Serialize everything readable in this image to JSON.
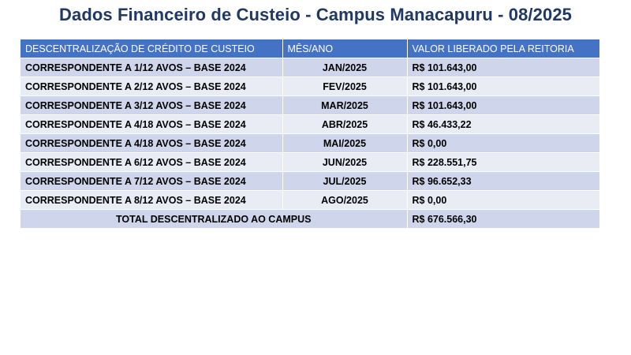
{
  "title": "Dados Financeiro de Custeio - Campus Manacapuru - 08/2025",
  "table": {
    "headers": [
      "DESCENTRALIZAÇÃO DE CRÉDITO DE CUSTEIO",
      "MÊS/ANO",
      "VALOR LIBERADO PELA REITORIA"
    ],
    "rows": [
      {
        "description": "CORRESPONDENTE A 1/12 AVOS – BASE 2024",
        "month": "JAN/2025",
        "value": "R$ 101.643,00"
      },
      {
        "description": "CORRESPONDENTE A 2/12 AVOS – BASE 2024",
        "month": "FEV/2025",
        "value": "R$ 101.643,00"
      },
      {
        "description": "CORRESPONDENTE A 3/12 AVOS – BASE 2024",
        "month": "MAR/2025",
        "value": "R$ 101.643,00"
      },
      {
        "description": "CORRESPONDENTE A 4/18 AVOS – BASE 2024",
        "month": "ABR/2025",
        "value": "R$ 46.433,22"
      },
      {
        "description": "CORRESPONDENTE A 4/18 AVOS – BASE 2024",
        "month": "MAI/2025",
        "value": "R$ 0,00"
      },
      {
        "description": "CORRESPONDENTE A 6/12 AVOS – BASE 2024",
        "month": "JUN/2025",
        "value": "R$ 228.551,75"
      },
      {
        "description": "CORRESPONDENTE A 7/12 AVOS – BASE 2024",
        "month": "JUL/2025",
        "value": "R$ 96.652,33"
      },
      {
        "description": "CORRESPONDENTE A 8/12 AVOS – BASE 2024",
        "month": "AGO/2025",
        "value": "R$ 0,00"
      }
    ],
    "total": {
      "label": "TOTAL DESCENTRALIZADO AO CAMPUS",
      "value": "R$ 676.566,30"
    }
  },
  "colors": {
    "title": "#1f3864",
    "header_bg": "#4472c4",
    "row_odd": "#cfd5ea",
    "row_even": "#e9ebf5"
  }
}
